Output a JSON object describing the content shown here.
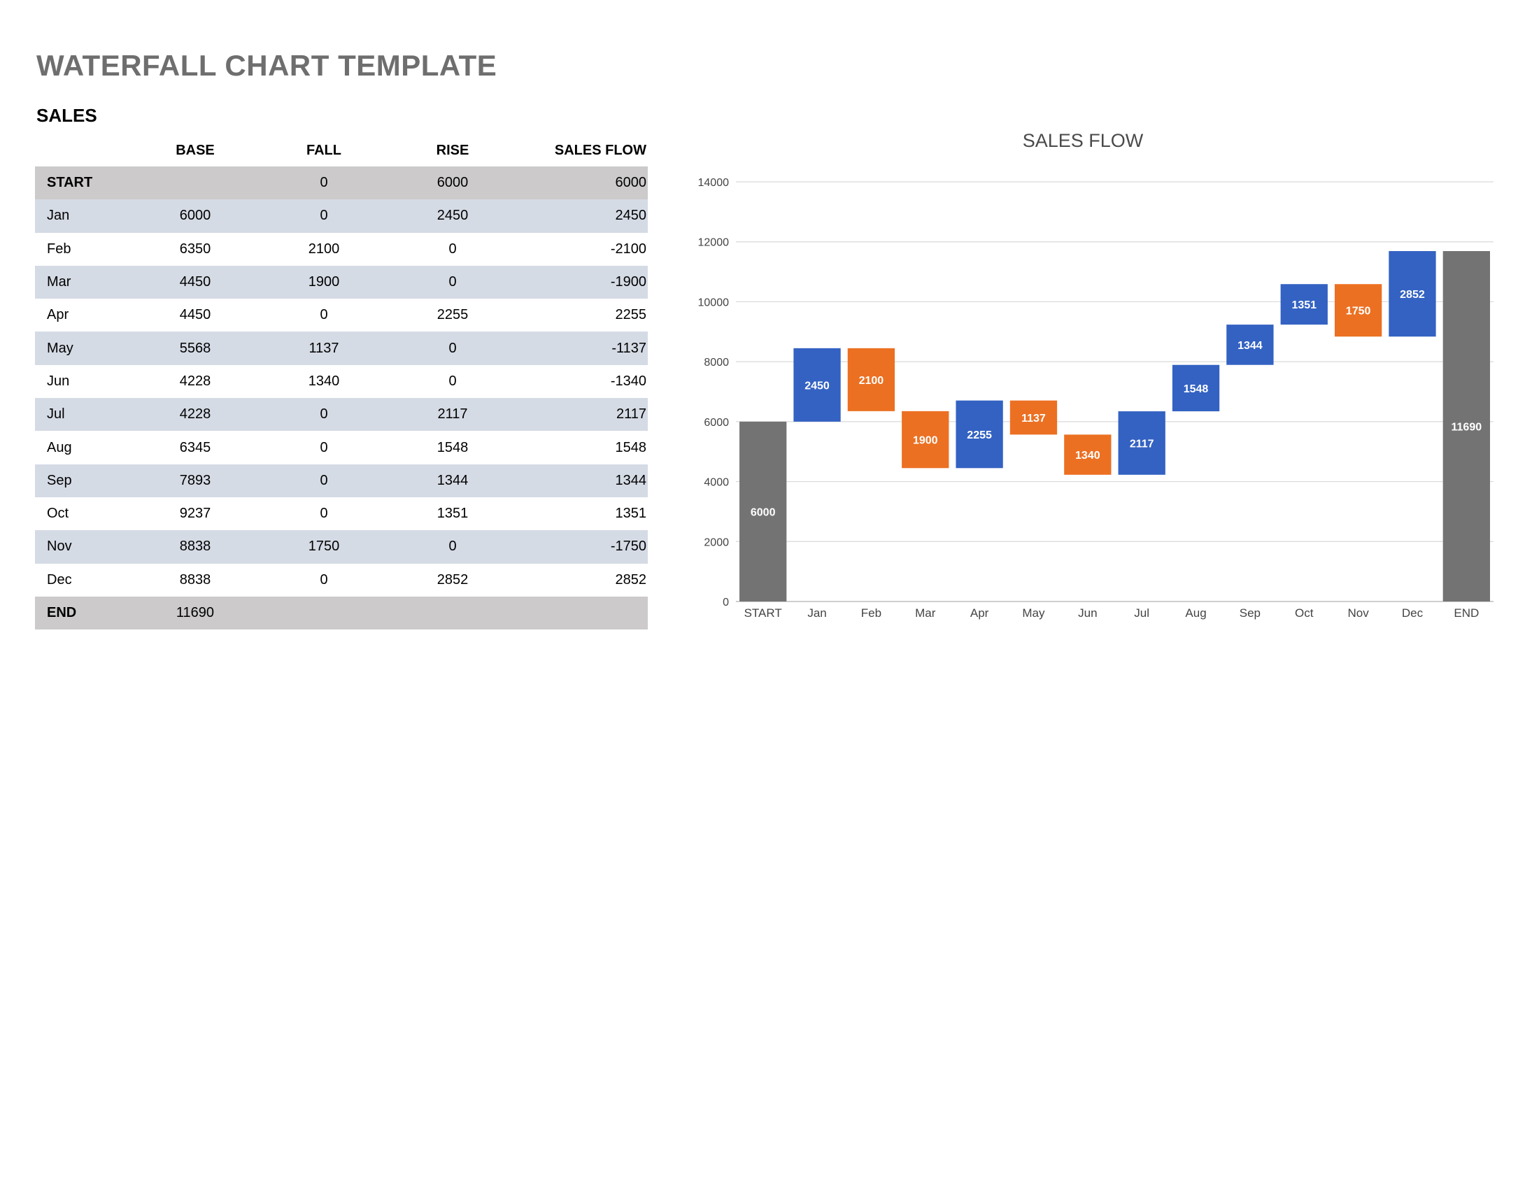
{
  "page": {
    "title": "WATERFALL CHART TEMPLATE",
    "section": "SALES"
  },
  "table": {
    "headers": [
      "",
      "BASE",
      "FALL",
      "RISE",
      "SALES FLOW"
    ],
    "rows": [
      {
        "label": "START",
        "base": "",
        "fall": "0",
        "rise": "6000",
        "flow": "6000"
      },
      {
        "label": "Jan",
        "base": "6000",
        "fall": "0",
        "rise": "2450",
        "flow": "2450"
      },
      {
        "label": "Feb",
        "base": "6350",
        "fall": "2100",
        "rise": "0",
        "flow": "-2100"
      },
      {
        "label": "Mar",
        "base": "4450",
        "fall": "1900",
        "rise": "0",
        "flow": "-1900"
      },
      {
        "label": "Apr",
        "base": "4450",
        "fall": "0",
        "rise": "2255",
        "flow": "2255"
      },
      {
        "label": "May",
        "base": "5568",
        "fall": "1137",
        "rise": "0",
        "flow": "-1137"
      },
      {
        "label": "Jun",
        "base": "4228",
        "fall": "1340",
        "rise": "0",
        "flow": "-1340"
      },
      {
        "label": "Jul",
        "base": "4228",
        "fall": "0",
        "rise": "2117",
        "flow": "2117"
      },
      {
        "label": "Aug",
        "base": "6345",
        "fall": "0",
        "rise": "1548",
        "flow": "1548"
      },
      {
        "label": "Sep",
        "base": "7893",
        "fall": "0",
        "rise": "1344",
        "flow": "1344"
      },
      {
        "label": "Oct",
        "base": "9237",
        "fall": "0",
        "rise": "1351",
        "flow": "1351"
      },
      {
        "label": "Nov",
        "base": "8838",
        "fall": "1750",
        "rise": "0",
        "flow": "-1750"
      },
      {
        "label": "Dec",
        "base": "8838",
        "fall": "0",
        "rise": "2852",
        "flow": "2852"
      },
      {
        "label": "END",
        "base": "11690",
        "fall": "",
        "rise": "",
        "flow": ""
      }
    ]
  },
  "chart_data": {
    "type": "bar",
    "subtype": "waterfall",
    "title": "SALES FLOW",
    "xlabel": "",
    "ylabel": "",
    "ylim": [
      0,
      14000
    ],
    "yticks": [
      0,
      2000,
      4000,
      6000,
      8000,
      10000,
      12000,
      14000
    ],
    "grid": true,
    "legend": "none",
    "categories": [
      "START",
      "Jan",
      "Feb",
      "Mar",
      "Apr",
      "May",
      "Jun",
      "Jul",
      "Aug",
      "Sep",
      "Oct",
      "Nov",
      "Dec",
      "END"
    ],
    "bars": [
      {
        "kind": "total",
        "start": 0,
        "end": 6000,
        "label": "6000"
      },
      {
        "kind": "rise",
        "start": 6000,
        "end": 8450,
        "label": "2450"
      },
      {
        "kind": "fall",
        "start": 8450,
        "end": 6350,
        "label": "2100"
      },
      {
        "kind": "fall",
        "start": 6350,
        "end": 4450,
        "label": "1900"
      },
      {
        "kind": "rise",
        "start": 4450,
        "end": 6705,
        "label": "2255"
      },
      {
        "kind": "fall",
        "start": 6705,
        "end": 5568,
        "label": "1137"
      },
      {
        "kind": "fall",
        "start": 5568,
        "end": 4228,
        "label": "1340"
      },
      {
        "kind": "rise",
        "start": 4228,
        "end": 6345,
        "label": "2117"
      },
      {
        "kind": "rise",
        "start": 6345,
        "end": 7893,
        "label": "1548"
      },
      {
        "kind": "rise",
        "start": 7893,
        "end": 9237,
        "label": "1344"
      },
      {
        "kind": "rise",
        "start": 9237,
        "end": 10588,
        "label": "1351"
      },
      {
        "kind": "fall",
        "start": 10588,
        "end": 8838,
        "label": "1750"
      },
      {
        "kind": "rise",
        "start": 8838,
        "end": 11690,
        "label": "2852"
      },
      {
        "kind": "total",
        "start": 0,
        "end": 11690,
        "label": "11690"
      }
    ],
    "colors": {
      "rise": "#3362c2",
      "fall": "#ec7022",
      "total": "#737373",
      "grid": "#d9d9d9",
      "axis_text": "#444444",
      "title": "#4a4a4a"
    }
  }
}
